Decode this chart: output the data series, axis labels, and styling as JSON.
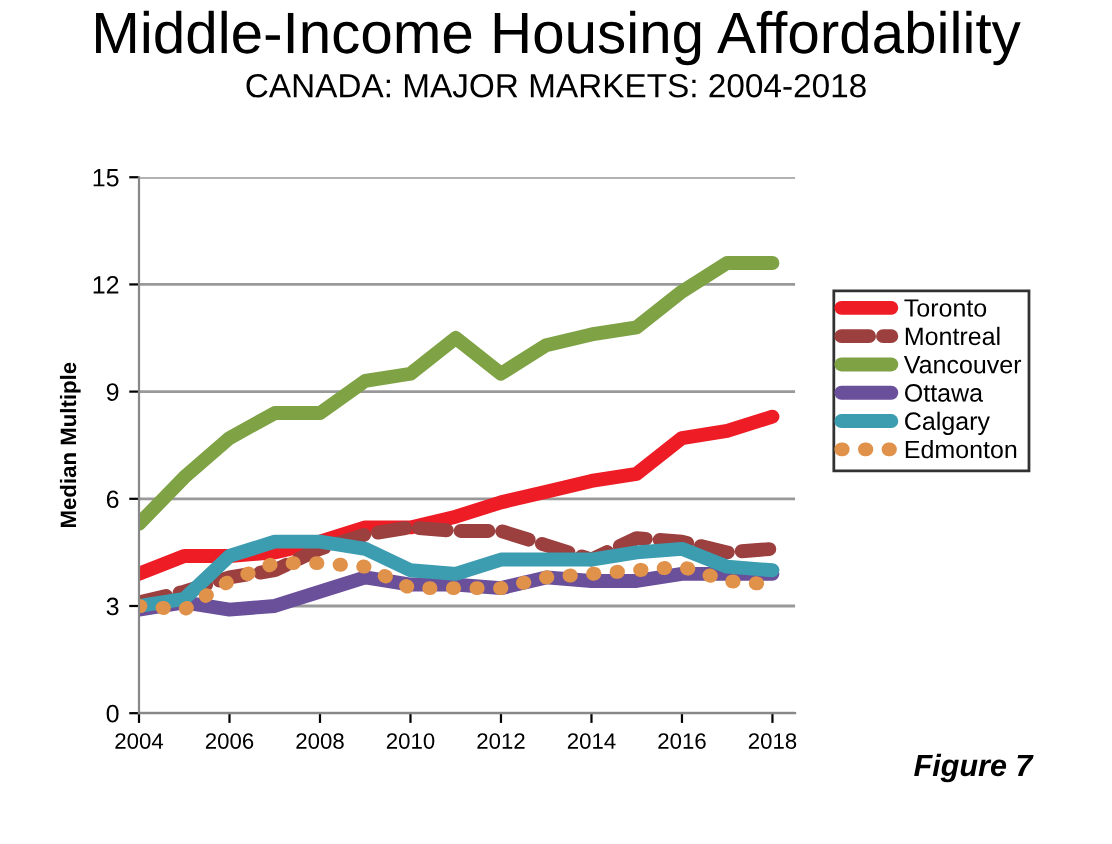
{
  "chart_data": {
    "type": "line",
    "title": "Middle-Income Housing Affordability",
    "subtitle": "CANADA: MAJOR MARKETS: 2004-2018",
    "ylabel": "Median Multiple",
    "x": [
      2004,
      2005,
      2006,
      2007,
      2008,
      2009,
      2010,
      2011,
      2012,
      2013,
      2014,
      2015,
      2016,
      2017,
      2018
    ],
    "xlim": [
      2004,
      2018.5
    ],
    "xticks": [
      2004,
      2006,
      2008,
      2010,
      2012,
      2014,
      2016,
      2018
    ],
    "ylim": [
      0,
      15
    ],
    "yticks": [
      0,
      3,
      6,
      9,
      12,
      15
    ],
    "grid": "y",
    "legend": "right",
    "annotations": [
      "Figure 7"
    ],
    "series": [
      {
        "name": "Toronto",
        "color": "#ee1c25",
        "line_style": "solid",
        "values": [
          3.9,
          4.4,
          4.4,
          4.5,
          4.8,
          5.2,
          5.2,
          5.5,
          5.9,
          6.2,
          6.5,
          6.7,
          7.7,
          7.9,
          8.3
        ]
      },
      {
        "name": "Montreal",
        "color": "#9c3f3f",
        "line_style": "dashed",
        "values": [
          3.1,
          3.4,
          3.8,
          4.0,
          4.6,
          5.0,
          5.2,
          5.1,
          5.1,
          4.7,
          4.3,
          4.9,
          4.8,
          4.5,
          4.6
        ]
      },
      {
        "name": "Vancouver",
        "color": "#7fa244",
        "line_style": "solid",
        "values": [
          5.3,
          6.6,
          7.7,
          8.4,
          8.4,
          9.3,
          9.5,
          10.5,
          9.5,
          10.3,
          10.6,
          10.8,
          11.8,
          12.6,
          12.6
        ]
      },
      {
        "name": "Ottawa",
        "color": "#6a4f9b",
        "line_style": "solid",
        "values": [
          2.9,
          3.1,
          2.9,
          3.0,
          3.4,
          3.8,
          3.6,
          3.6,
          3.5,
          3.8,
          3.7,
          3.7,
          3.9,
          3.9,
          3.9
        ]
      },
      {
        "name": "Calgary",
        "color": "#3c9cb0",
        "line_style": "solid",
        "values": [
          3.0,
          3.2,
          4.4,
          4.8,
          4.8,
          4.6,
          4.0,
          3.9,
          4.3,
          4.3,
          4.3,
          4.5,
          4.6,
          4.1,
          4.0
        ]
      },
      {
        "name": "Edmonton",
        "color": "#e0914a",
        "line_style": "dotted",
        "values": [
          3.0,
          2.9,
          3.7,
          4.2,
          4.2,
          4.1,
          3.5,
          3.5,
          3.5,
          3.8,
          3.9,
          4.0,
          4.1,
          3.7,
          3.6
        ]
      }
    ]
  }
}
